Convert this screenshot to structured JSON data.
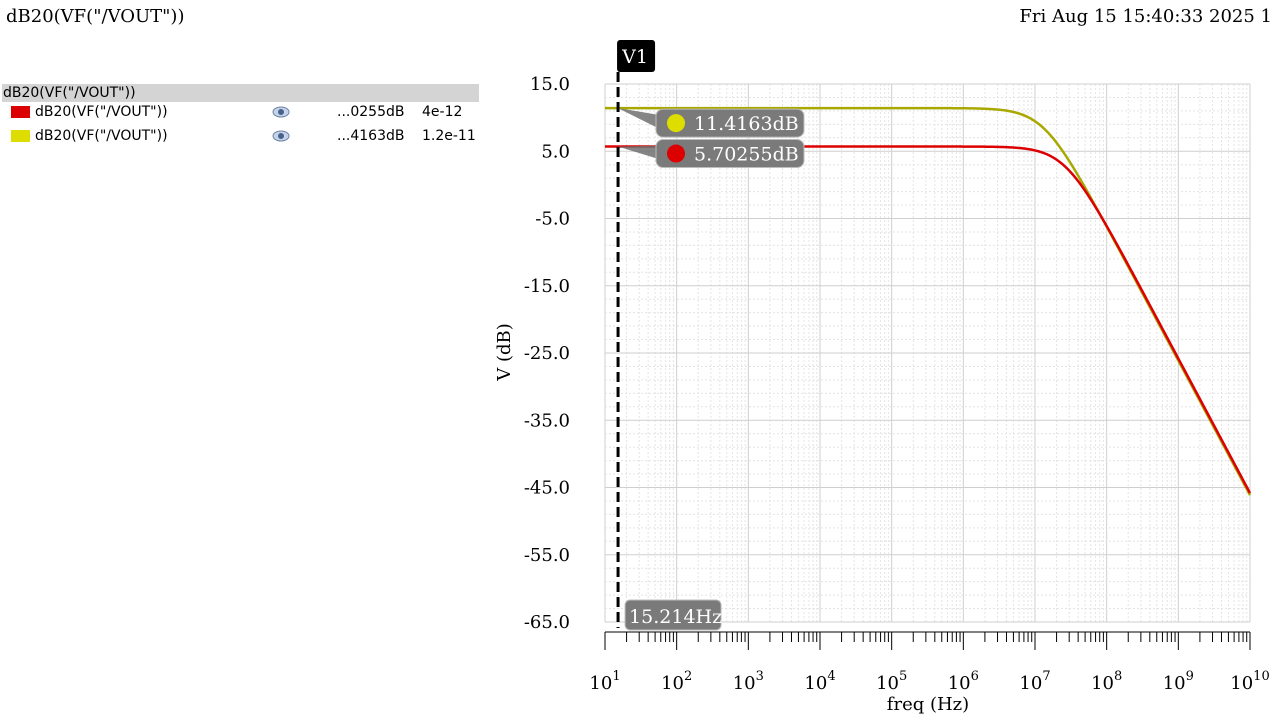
{
  "header": {
    "title": "dB20(VF(\"/VOUT\"))",
    "datetime": "Fri Aug 15 15:40:33 2025",
    "page": "1"
  },
  "legend": {
    "group_label": "dB20(VF(\"/VOUT\"))",
    "items": [
      {
        "name": "dB20(VF(\"/VOUT\"))",
        "color": "#dd0000",
        "value": "...0255dB",
        "x": "4e-12",
        "icon": "eye-icon"
      },
      {
        "name": "dB20(VF(\"/VOUT\"))",
        "color": "#dddd00",
        "value": "...4163dB",
        "x": "1.2e-11",
        "icon": "eye-icon"
      }
    ]
  },
  "marker": {
    "name": "V1",
    "freq_hz": 15.214,
    "freq_label": "15.214Hz",
    "readouts": [
      {
        "label": "11.4163dB",
        "value": 11.4163,
        "dot_color": "#dddd00"
      },
      {
        "label": "5.70255dB",
        "value": 5.70255,
        "dot_color": "#dd0000"
      }
    ]
  },
  "chart_data": {
    "type": "line",
    "xlabel": "freq (Hz)",
    "ylabel": "V (dB)",
    "xscale": "log",
    "xlim": [
      10,
      10000000000
    ],
    "ylim": [
      -65,
      15
    ],
    "yticks": [
      15.0,
      5.0,
      -5.0,
      -15.0,
      -25.0,
      -35.0,
      -45.0,
      -55.0,
      -65.0
    ],
    "ytick_labels": [
      "15.0",
      "5.0",
      "-5.0",
      "-15.0",
      "-25.0",
      "-35.0",
      "-45.0",
      "-55.0",
      "-65.0"
    ],
    "xticks": [
      10,
      100,
      1000,
      10000,
      100000,
      1000000,
      10000000,
      100000000,
      1000000000,
      10000000000
    ],
    "xtick_exponents": [
      "1",
      "2",
      "3",
      "4",
      "5",
      "6",
      "7",
      "8",
      "9",
      "10"
    ],
    "grid": true,
    "series": [
      {
        "color": "#a8a800",
        "dc_gain_db": 11.4163,
        "pole_hz": 13260000
      },
      {
        "color": "#dd0000",
        "dc_gain_db": 5.70255,
        "pole_hz": 26520000
      }
    ]
  }
}
